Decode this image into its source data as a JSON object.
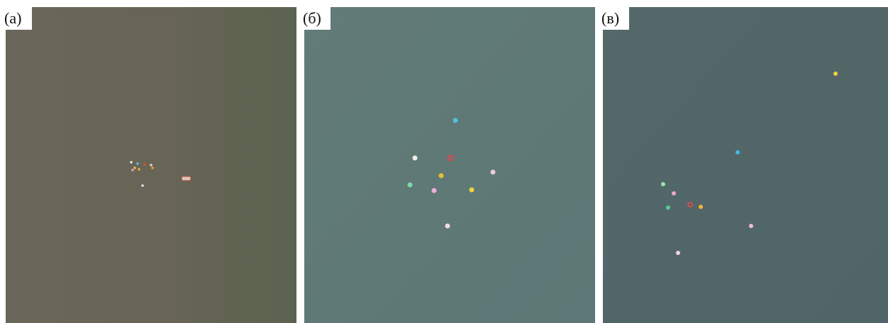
{
  "panels": [
    {
      "label": "(а)"
    },
    {
      "label": "(б)"
    },
    {
      "label": "(в)"
    }
  ]
}
